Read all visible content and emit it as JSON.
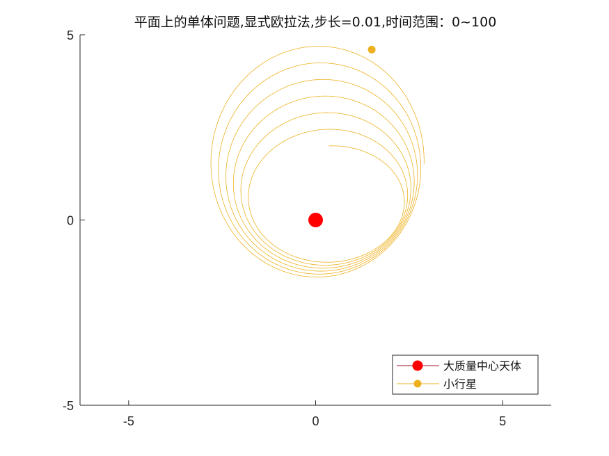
{
  "chart_data": {
    "type": "line",
    "title": "平面上的单体问题,显式欧拉法,步长=0.01,时间范围：0~100",
    "xlabel": "",
    "ylabel": "",
    "xlim": [
      -6.3,
      6.3
    ],
    "ylim": [
      -5,
      5
    ],
    "x_ticks": [
      -5,
      0,
      5
    ],
    "y_ticks": [
      -5,
      0,
      5
    ],
    "x_tick_labels": [
      "-5",
      "0",
      "5"
    ],
    "y_tick_labels": [
      "-5",
      "0",
      "5"
    ],
    "grid": false,
    "legend_position": "bottom-right",
    "series": [
      {
        "name": "大质量中心天体",
        "color": "#ff0000",
        "line_color": "#a2142f",
        "marker": "circle",
        "points": [
          {
            "x": 0,
            "y": 0
          }
        ]
      },
      {
        "name": "小行星",
        "color": "#edb120",
        "marker": "circle",
        "orbit_start": {
          "x": 0,
          "y": 2
        },
        "orbit_end": {
          "x": 1.5,
          "y": 4.6
        },
        "loops": 7,
        "min_y_range": [
          -1.1,
          -1.6
        ],
        "min_x_range": [
          -1.65,
          -2.9
        ],
        "max_x_range": [
          2.35,
          2.9
        ],
        "max_y_range": [
          2.0,
          4.8
        ]
      }
    ]
  }
}
